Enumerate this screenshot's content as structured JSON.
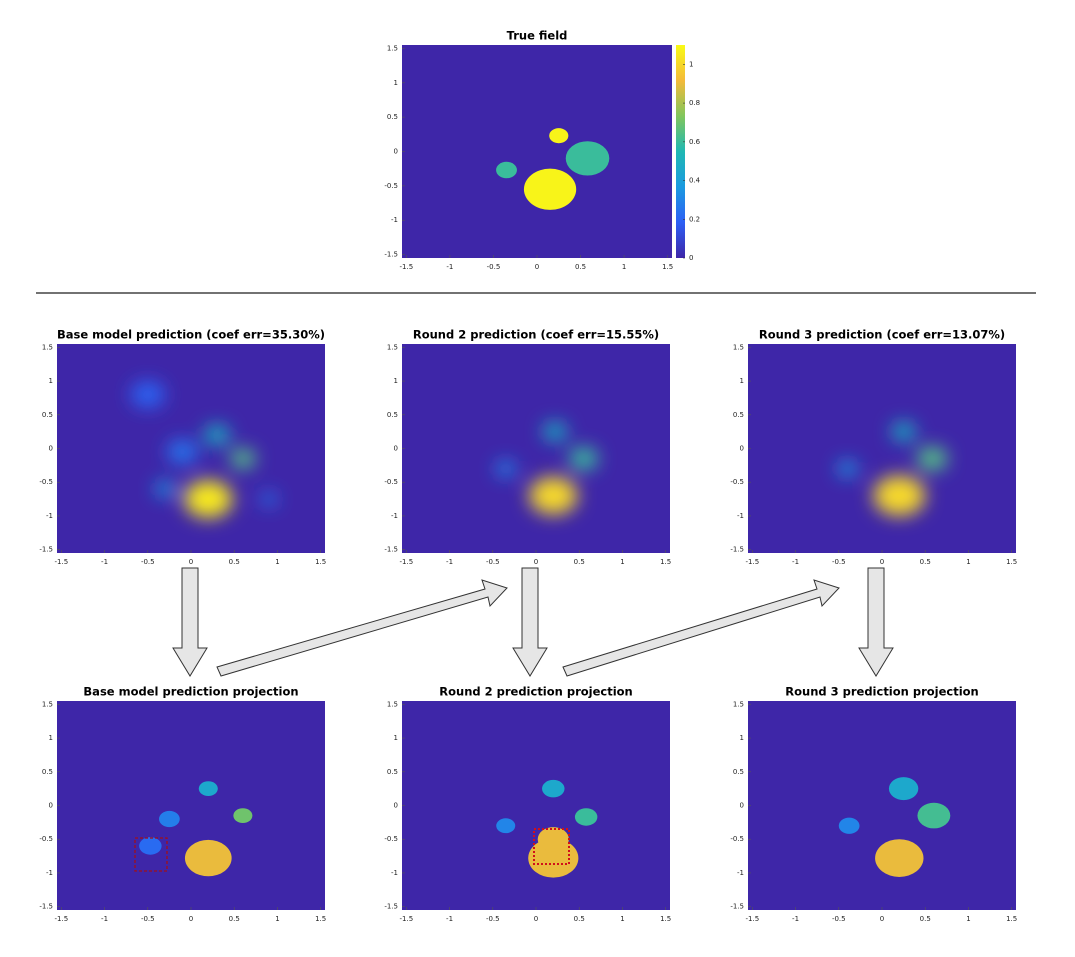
{
  "figure": {
    "xlim": [
      -1.55,
      1.55
    ],
    "ylim": [
      -1.55,
      1.55
    ],
    "xticks": [
      -1.5,
      -1,
      -0.5,
      0,
      0.5,
      1,
      1.5
    ],
    "yticks": [
      -1.5,
      -1,
      -0.5,
      0,
      0.5,
      1,
      1.5
    ],
    "clim": [
      0,
      1.1
    ],
    "colormap": [
      "#3e26a8",
      "#2d5ff5",
      "#1b9ae0",
      "#1fb8b3",
      "#81c65c",
      "#f4ba3a",
      "#f9fb15"
    ],
    "true_field": {
      "title": "True field",
      "colorbar_ticks": [
        0,
        0.2,
        0.4,
        0.6,
        0.8,
        1
      ],
      "blobs": [
        {
          "x": 0.15,
          "y": -0.55,
          "r": 0.3,
          "value": 1.08
        },
        {
          "x": 0.58,
          "y": -0.1,
          "r": 0.25,
          "value": 0.6
        },
        {
          "x": 0.25,
          "y": 0.23,
          "r": 0.11,
          "value": 1.08
        },
        {
          "x": -0.35,
          "y": -0.27,
          "r": 0.12,
          "value": 0.6
        }
      ]
    },
    "predictions": [
      {
        "title": "Base model prediction (coef err=35.30%)",
        "blobs": [
          {
            "x": 0.2,
            "y": -0.75,
            "r": 0.28,
            "value": 1.05
          },
          {
            "x": 0.6,
            "y": -0.15,
            "r": 0.15,
            "value": 0.65
          },
          {
            "x": 0.3,
            "y": 0.2,
            "r": 0.15,
            "value": 0.5
          },
          {
            "x": -0.3,
            "y": -0.6,
            "r": 0.12,
            "value": 0.35
          },
          {
            "x": -0.1,
            "y": -0.05,
            "r": 0.18,
            "value": 0.25
          },
          {
            "x": -0.5,
            "y": 0.8,
            "r": 0.2,
            "value": 0.2
          },
          {
            "x": 0.9,
            "y": -0.75,
            "r": 0.1,
            "value": 0.25
          }
        ]
      },
      {
        "title": "Round 2 prediction (coef err=15.55%)",
        "blobs": [
          {
            "x": 0.2,
            "y": -0.7,
            "r": 0.28,
            "value": 1.0
          },
          {
            "x": 0.55,
            "y": -0.15,
            "r": 0.17,
            "value": 0.6
          },
          {
            "x": 0.22,
            "y": 0.25,
            "r": 0.14,
            "value": 0.5
          },
          {
            "x": -0.35,
            "y": -0.3,
            "r": 0.12,
            "value": 0.3
          }
        ]
      },
      {
        "title": "Round 3 prediction (coef err=13.07%)",
        "blobs": [
          {
            "x": 0.2,
            "y": -0.7,
            "r": 0.3,
            "value": 1.0
          },
          {
            "x": 0.58,
            "y": -0.15,
            "r": 0.18,
            "value": 0.65
          },
          {
            "x": 0.25,
            "y": 0.25,
            "r": 0.14,
            "value": 0.5
          },
          {
            "x": -0.4,
            "y": -0.3,
            "r": 0.12,
            "value": 0.35
          }
        ]
      }
    ],
    "projections": [
      {
        "title": "Base model prediction projection",
        "blobs": [
          {
            "x": 0.2,
            "y": 0.25,
            "r": 0.11,
            "value": 0.45
          },
          {
            "x": 0.6,
            "y": -0.15,
            "r": 0.11,
            "value": 0.7
          },
          {
            "x": -0.25,
            "y": -0.2,
            "r": 0.12,
            "value": 0.28
          },
          {
            "x": -0.47,
            "y": -0.6,
            "r": 0.13,
            "value": 0.22
          },
          {
            "x": 0.2,
            "y": -0.78,
            "r": 0.27,
            "value": 0.9
          }
        ]
      },
      {
        "title": "Round 2 prediction projection",
        "blobs": [
          {
            "x": 0.2,
            "y": 0.25,
            "r": 0.13,
            "value": 0.45
          },
          {
            "x": 0.58,
            "y": -0.17,
            "r": 0.13,
            "value": 0.6
          },
          {
            "x": -0.35,
            "y": -0.3,
            "r": 0.11,
            "value": 0.3
          },
          {
            "x": 0.2,
            "y": -0.78,
            "r": 0.29,
            "value": 0.9
          },
          {
            "x": 0.2,
            "y": -0.5,
            "r": 0.18,
            "value": 0.9
          }
        ]
      },
      {
        "title": "Round 3 prediction projection",
        "blobs": [
          {
            "x": 0.25,
            "y": 0.25,
            "r": 0.17,
            "value": 0.45
          },
          {
            "x": 0.6,
            "y": -0.15,
            "r": 0.19,
            "value": 0.62
          },
          {
            "x": -0.38,
            "y": -0.3,
            "r": 0.12,
            "value": 0.3
          },
          {
            "x": 0.2,
            "y": -0.78,
            "r": 0.28,
            "value": 0.9
          }
        ]
      }
    ]
  }
}
